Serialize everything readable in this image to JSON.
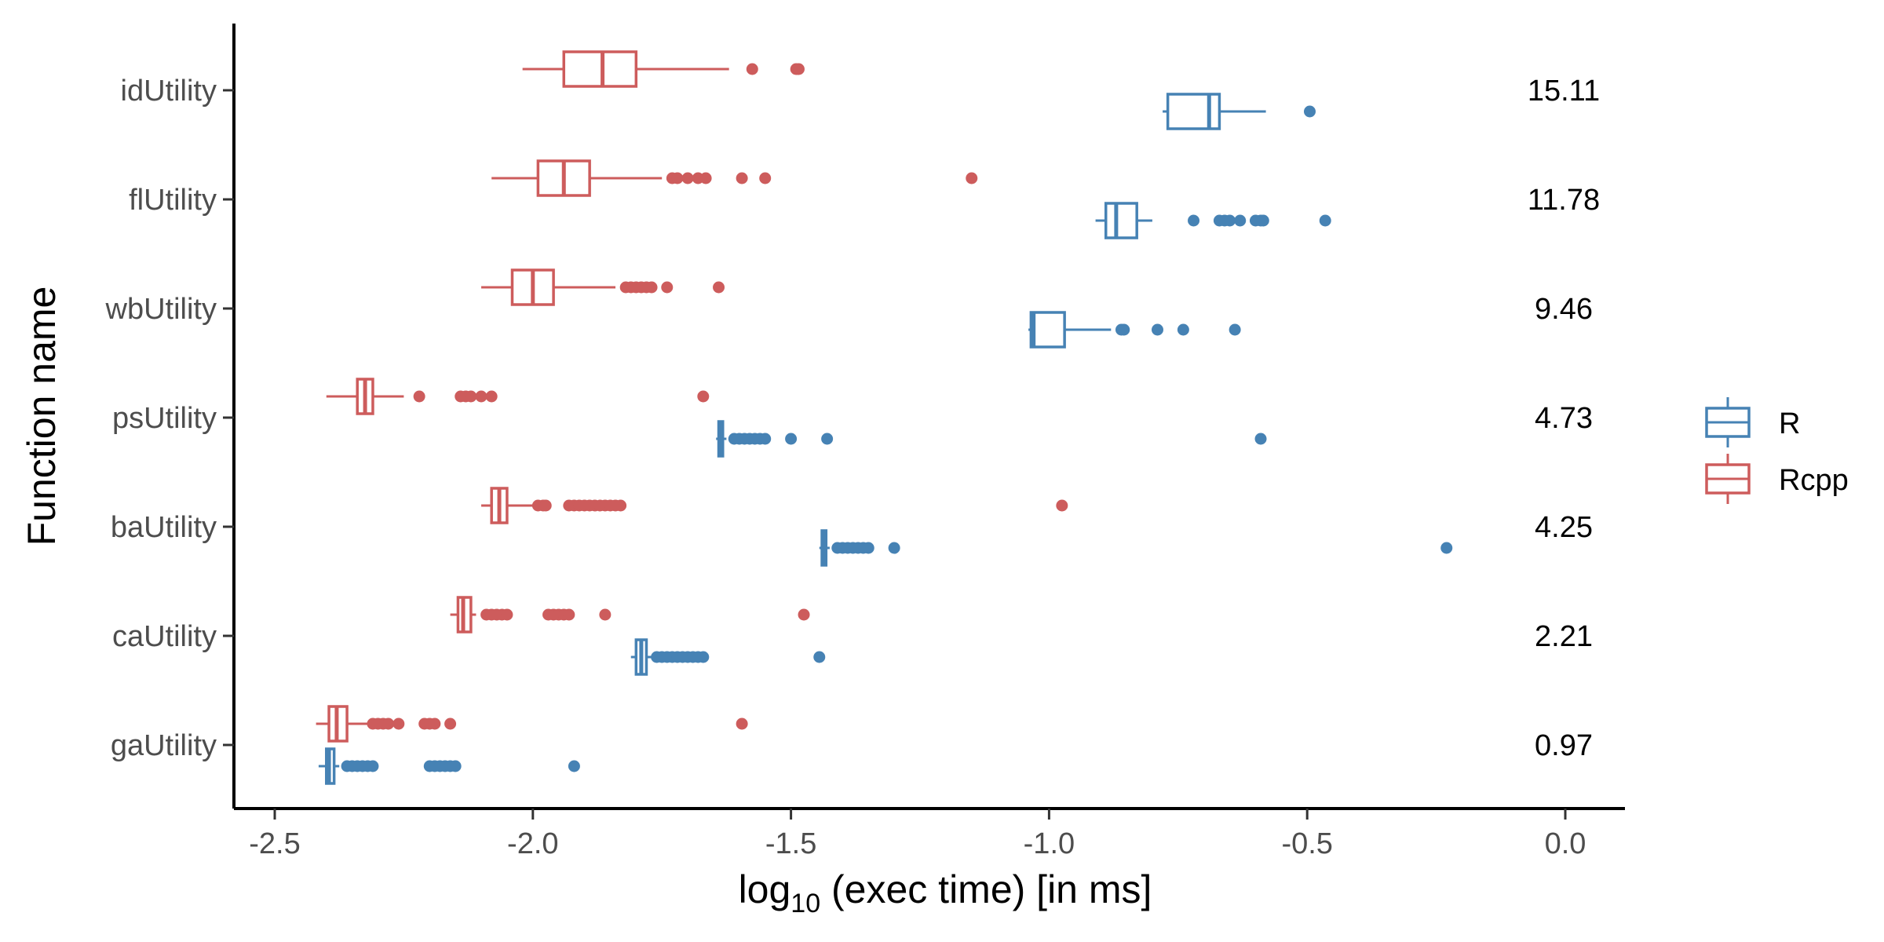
{
  "chart_data": {
    "type": "boxplot",
    "orientation": "horizontal",
    "xlabel": "log",
    "xlabel_subscript": "10",
    "xlabel_rest": " (exec time) [in ms]",
    "ylabel": "Function name",
    "xlim": [
      -2.53,
      0.12
    ],
    "x_ticks": [
      -2.5,
      -2.0,
      -1.5,
      -1.0,
      -0.5,
      0.0
    ],
    "x_tick_labels": [
      "-2.5",
      "-2.0",
      "-1.5",
      "-1.0",
      "-0.5",
      "0.0"
    ],
    "categories": [
      "idUtility",
      "flUtility",
      "wbUtility",
      "psUtility",
      "baUtility",
      "caUtility",
      "gaUtility"
    ],
    "ratios": [
      "15.11",
      "11.78",
      "9.46",
      "4.73",
      "4.25",
      "2.21",
      "0.97"
    ],
    "legend_position": "right",
    "series": [
      {
        "name": "R",
        "color": "#4682B4",
        "boxes": [
          {
            "category": "idUtility",
            "whisker_low": -0.78,
            "q1": -0.77,
            "median": -0.69,
            "q3": -0.67,
            "whisker_high": -0.58,
            "outliers": [
              -0.495
            ]
          },
          {
            "category": "flUtility",
            "whisker_low": -0.91,
            "q1": -0.89,
            "median": -0.87,
            "q3": -0.83,
            "whisker_high": -0.8,
            "outliers": [
              -0.72,
              -0.67,
              -0.66,
              -0.65,
              -0.63,
              -0.6,
              -0.59,
              -0.585,
              -0.465
            ]
          },
          {
            "category": "wbUtility",
            "whisker_low": -1.04,
            "q1": -1.035,
            "median": -1.03,
            "q3": -0.97,
            "whisker_high": -0.88,
            "outliers": [
              -0.86,
              -0.855,
              -0.79,
              -0.74,
              -0.64
            ]
          },
          {
            "category": "psUtility",
            "whisker_low": -1.645,
            "q1": -1.64,
            "median": -1.638,
            "q3": -1.632,
            "whisker_high": -1.625,
            "outliers": [
              -1.61,
              -1.6,
              -1.59,
              -1.58,
              -1.57,
              -1.56,
              -1.55,
              -1.5,
              -1.43,
              -0.59
            ]
          },
          {
            "category": "baUtility",
            "whisker_low": -1.445,
            "q1": -1.44,
            "median": -1.437,
            "q3": -1.432,
            "whisker_high": -1.425,
            "outliers": [
              -1.41,
              -1.4,
              -1.39,
              -1.38,
              -1.37,
              -1.36,
              -1.35,
              -1.3,
              -0.23
            ]
          },
          {
            "category": "caUtility",
            "whisker_low": -1.81,
            "q1": -1.8,
            "median": -1.79,
            "q3": -1.78,
            "whisker_high": -1.77,
            "outliers": [
              -1.76,
              -1.75,
              -1.74,
              -1.73,
              -1.72,
              -1.71,
              -1.7,
              -1.69,
              -1.68,
              -1.67,
              -1.445
            ]
          },
          {
            "category": "gaUtility",
            "whisker_low": -2.415,
            "q1": -2.4,
            "median": -2.395,
            "q3": -2.385,
            "whisker_high": -2.375,
            "outliers": [
              -2.36,
              -2.35,
              -2.34,
              -2.33,
              -2.32,
              -2.31,
              -2.2,
              -2.19,
              -2.18,
              -2.17,
              -2.16,
              -2.15,
              -1.92
            ]
          }
        ]
      },
      {
        "name": "Rcpp",
        "color": "#CD5C5C",
        "boxes": [
          {
            "category": "idUtility",
            "whisker_low": -2.02,
            "q1": -1.94,
            "median": -1.865,
            "q3": -1.8,
            "whisker_high": -1.62,
            "outliers": [
              -1.575,
              -1.49,
              -1.485
            ]
          },
          {
            "category": "flUtility",
            "whisker_low": -2.08,
            "q1": -1.99,
            "median": -1.94,
            "q3": -1.89,
            "whisker_high": -1.75,
            "outliers": [
              -1.73,
              -1.72,
              -1.7,
              -1.68,
              -1.665,
              -1.595,
              -1.55,
              -1.15
            ]
          },
          {
            "category": "wbUtility",
            "whisker_low": -2.1,
            "q1": -2.04,
            "median": -2.0,
            "q3": -1.96,
            "whisker_high": -1.84,
            "outliers": [
              -1.82,
              -1.81,
              -1.8,
              -1.79,
              -1.78,
              -1.77,
              -1.74,
              -1.64
            ]
          },
          {
            "category": "psUtility",
            "whisker_low": -2.4,
            "q1": -2.34,
            "median": -2.325,
            "q3": -2.31,
            "whisker_high": -2.25,
            "outliers": [
              -2.22,
              -2.14,
              -2.13,
              -2.12,
              -2.1,
              -2.08,
              -1.67
            ]
          },
          {
            "category": "baUtility",
            "whisker_low": -2.1,
            "q1": -2.08,
            "median": -2.065,
            "q3": -2.05,
            "whisker_high": -2.0,
            "outliers": [
              -1.99,
              -1.98,
              -1.975,
              -1.93,
              -1.92,
              -1.91,
              -1.9,
              -1.89,
              -1.88,
              -1.87,
              -1.86,
              -1.85,
              -1.84,
              -1.83,
              -0.975
            ]
          },
          {
            "category": "caUtility",
            "whisker_low": -2.16,
            "q1": -2.145,
            "median": -2.135,
            "q3": -2.12,
            "whisker_high": -2.11,
            "outliers": [
              -2.09,
              -2.08,
              -2.07,
              -2.06,
              -2.05,
              -1.97,
              -1.96,
              -1.95,
              -1.94,
              -1.93,
              -1.86,
              -1.475
            ]
          },
          {
            "category": "gaUtility",
            "whisker_low": -2.42,
            "q1": -2.395,
            "median": -2.38,
            "q3": -2.36,
            "whisker_high": -2.32,
            "outliers": [
              -2.31,
              -2.3,
              -2.29,
              -2.28,
              -2.26,
              -2.21,
              -2.2,
              -2.19,
              -2.16,
              -1.595
            ]
          }
        ]
      }
    ]
  }
}
